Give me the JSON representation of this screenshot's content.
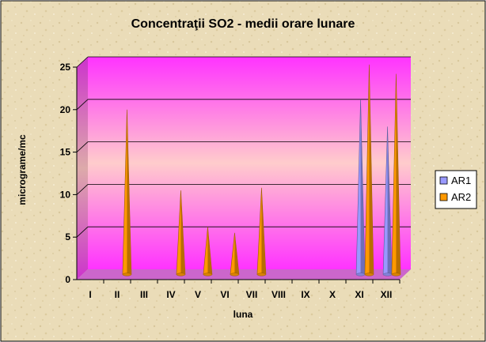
{
  "chart_data": {
    "type": "bar",
    "title": "Concentraţii SO2 - medii orare lunare",
    "xlabel": "luna",
    "ylabel": "micrograme/mc",
    "categories": [
      "I",
      "II",
      "III",
      "IV",
      "V",
      "VI",
      "VII",
      "VIII",
      "IX",
      "X",
      "XI",
      "XII"
    ],
    "series": [
      {
        "name": "AR1",
        "color": "#9999ff",
        "values": [
          0,
          0,
          0,
          0,
          0,
          0,
          0,
          0,
          0,
          0,
          20.6,
          17.4
        ]
      },
      {
        "name": "AR2",
        "color": "#ff9900",
        "values": [
          0,
          19.4,
          0,
          9.9,
          5.6,
          4.9,
          10.2,
          0,
          0,
          0,
          24.7,
          23.6
        ]
      }
    ],
    "ylim": [
      0,
      25
    ],
    "yticks": [
      "0",
      "5",
      "10",
      "15",
      "20",
      "25"
    ],
    "bar_shape": "cone",
    "grid": true,
    "legend": "right",
    "colors": {
      "wall_top": "#ff33ff",
      "wall_mid": "#ffcccc",
      "floor": "#cc66cc",
      "gridline": "#000000",
      "chart_frame": "#000000"
    }
  }
}
